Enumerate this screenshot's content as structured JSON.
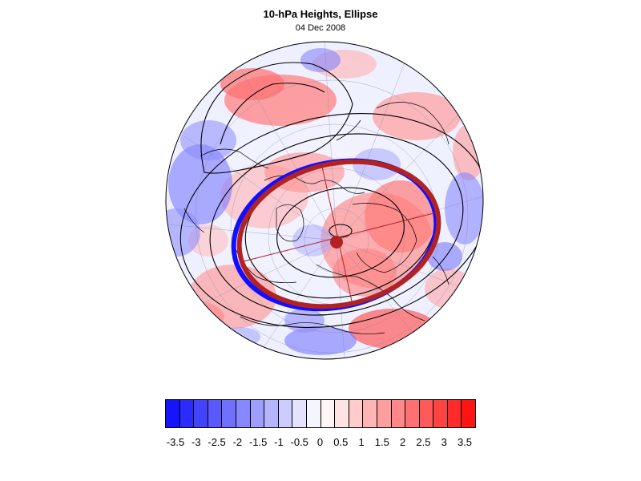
{
  "title": "10-hPa Heights, Ellipse",
  "subtitle": "04 Dec 2008",
  "colorbar": {
    "colors": [
      "#1414ff",
      "#2b2bff",
      "#4242ff",
      "#5959ff",
      "#7070ff",
      "#8787ff",
      "#9e9eff",
      "#b5b5ff",
      "#ccccff",
      "#e3e3ff",
      "#f5f5ff",
      "#fff5f5",
      "#ffe3e3",
      "#ffcccc",
      "#ffb5b5",
      "#ff9e9e",
      "#ff8787",
      "#ff7070",
      "#ff5959",
      "#ff4242",
      "#ff2b2b",
      "#ff1414"
    ],
    "labels": [
      "-3.5",
      "-3",
      "-2.5",
      "-2",
      "-1.5",
      "-1",
      "-0.5",
      "0",
      "0.5",
      "1",
      "1.5",
      "2",
      "2.5",
      "3",
      "3.5"
    ]
  },
  "map": {
    "projection": "polar stereographic, north pole",
    "ellipse_colors": {
      "outer": "#1010ff",
      "inner": "#b22222"
    },
    "center_marker_color": "#b22222"
  }
}
